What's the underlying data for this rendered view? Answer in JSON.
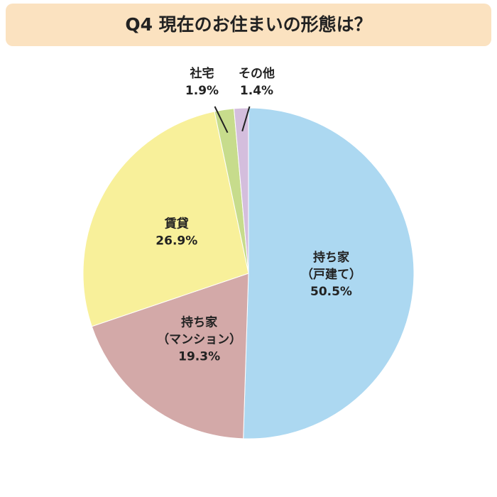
{
  "chart_data": {
    "type": "pie",
    "title": "Q4 現在のお住まいの形態は？",
    "categories": [
      [
        "持ち家",
        "（戸建て）"
      ],
      [
        "持ち家",
        "（マンション）"
      ],
      [
        "賃貸"
      ],
      [
        "社宅"
      ],
      [
        "その他"
      ]
    ],
    "values": [
      50.5,
      19.3,
      26.9,
      1.9,
      1.4
    ],
    "value_labels": [
      "50.5%",
      "19.3%",
      "26.9%",
      "1.9%",
      "1.4%"
    ],
    "colors": [
      "#acd8f1",
      "#d3a9a8",
      "#f8f09a",
      "#c7dc8c",
      "#d4bedd"
    ]
  }
}
